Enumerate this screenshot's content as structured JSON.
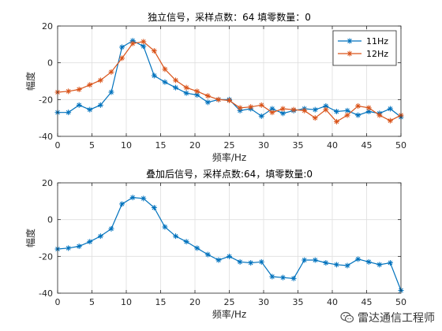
{
  "chart_data": [
    {
      "type": "line",
      "title": "独立信号，采样点数：64 填零数量：0",
      "xlabel": "频率/Hz",
      "ylabel": "幅度",
      "xlim": [
        0,
        50
      ],
      "ylim": [
        -40,
        20
      ],
      "xticks": [
        0,
        5,
        10,
        15,
        20,
        25,
        30,
        35,
        40,
        45,
        50
      ],
      "yticks": [
        -40,
        -20,
        0,
        20
      ],
      "grid": true,
      "legend_position": "top-right",
      "marker": "*",
      "series": [
        {
          "name": "11Hz",
          "color": "#0072BD",
          "x": [
            0,
            1.5625,
            3.125,
            4.6875,
            6.25,
            7.8125,
            9.375,
            10.9375,
            12.5,
            14.0625,
            15.625,
            17.1875,
            18.75,
            20.3125,
            21.875,
            23.4375,
            25,
            26.5625,
            28.125,
            29.6875,
            31.25,
            32.8125,
            34.375,
            35.9375,
            37.5,
            39.0625,
            40.625,
            42.1875,
            43.75,
            45.3125,
            46.875,
            48.4375,
            50
          ],
          "y": [
            -27,
            -27,
            -23,
            -25.5,
            -23,
            -16,
            8.5,
            12,
            9,
            -7,
            -10.5,
            -13.5,
            -16.5,
            -17.5,
            -21.5,
            -20,
            -20,
            -26,
            -25,
            -29,
            -25,
            -27.5,
            -26,
            -25,
            -25.5,
            -23.5,
            -26.5,
            -26,
            -28.5,
            -26.5,
            -27.5,
            -25,
            -29.5
          ]
        },
        {
          "name": "12Hz",
          "color": "#D95319",
          "x": [
            0,
            1.5625,
            3.125,
            4.6875,
            6.25,
            7.8125,
            9.375,
            10.9375,
            12.5,
            14.0625,
            15.625,
            17.1875,
            18.75,
            20.3125,
            21.875,
            23.4375,
            25,
            26.5625,
            28.125,
            29.6875,
            31.25,
            32.8125,
            34.375,
            35.9375,
            37.5,
            39.0625,
            40.625,
            42.1875,
            43.75,
            45.3125,
            46.875,
            48.4375,
            50
          ],
          "y": [
            -16,
            -15.5,
            -14.5,
            -12,
            -9.5,
            -5,
            2.5,
            10.5,
            11.5,
            6.5,
            -3.5,
            -9.5,
            -13.5,
            -15.5,
            -18,
            -20,
            -20.5,
            -24.5,
            -24,
            -23,
            -27,
            -25,
            -25.5,
            -26,
            -30,
            -25.5,
            -32,
            -28.5,
            -23.5,
            -24.5,
            -28.5,
            -31.5,
            -28.5
          ]
        }
      ]
    },
    {
      "type": "line",
      "title": "叠加后信号，采样点数:64，填零数量:0",
      "xlabel": "频率/Hz",
      "ylabel": "幅度",
      "xlim": [
        0,
        50
      ],
      "ylim": [
        -40,
        20
      ],
      "xticks": [
        0,
        5,
        10,
        15,
        20,
        25,
        30,
        35,
        40,
        45,
        50
      ],
      "yticks": [
        -40,
        -20,
        0,
        20
      ],
      "grid": true,
      "marker": "*",
      "series": [
        {
          "color": "#0072BD",
          "x": [
            0,
            1.5625,
            3.125,
            4.6875,
            6.25,
            7.8125,
            9.375,
            10.9375,
            12.5,
            14.0625,
            15.625,
            17.1875,
            18.75,
            20.3125,
            21.875,
            23.4375,
            25,
            26.5625,
            28.125,
            29.6875,
            31.25,
            32.8125,
            34.375,
            35.9375,
            37.5,
            39.0625,
            40.625,
            42.1875,
            43.75,
            45.3125,
            46.875,
            48.4375,
            50
          ],
          "y": [
            -16,
            -15.5,
            -14.5,
            -12,
            -9,
            -5,
            8.5,
            12,
            11.5,
            6.5,
            -4,
            -9,
            -12,
            -15.5,
            -19,
            -22,
            -20,
            -23,
            -23.5,
            -23,
            -31,
            -31.5,
            -32,
            -22,
            -22,
            -23.5,
            -24.5,
            -25,
            -21.5,
            -23,
            -24.5,
            -23.5,
            -38.5
          ]
        }
      ]
    }
  ],
  "watermark": {
    "text": "雷达通信工程师",
    "icon": "wechat-icon"
  }
}
